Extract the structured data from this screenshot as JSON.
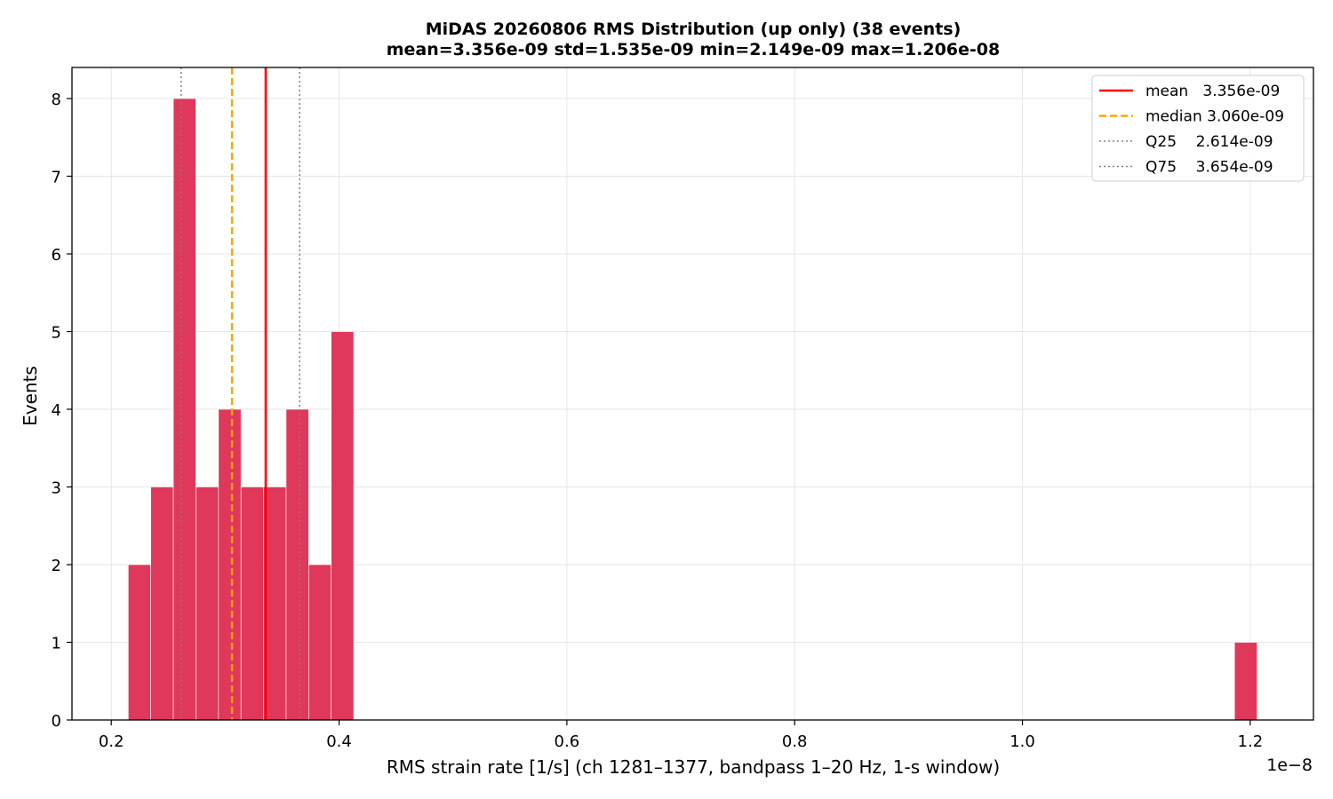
{
  "chart_data": {
    "type": "bar",
    "title": "MiDAS 20260806  RMS Distribution  (up only)  (38 events)",
    "subtitle": "mean=3.356e-09  std=1.535e-09  min=2.149e-09  max=1.206e-08",
    "xlabel": "RMS strain rate [1/s]  (ch 1281–1377, bandpass 1–20 Hz, 1-s window)",
    "ylabel": "Events",
    "x_offset_label": "1e−8",
    "xlim": [
      0.1655,
      1.2555
    ],
    "ylim": [
      0,
      8.4
    ],
    "x_ticks": [
      0.2,
      0.4,
      0.6,
      0.8,
      1.0,
      1.2
    ],
    "x_tick_labels": [
      "0.2",
      "0.4",
      "0.6",
      "0.8",
      "1.0",
      "1.2"
    ],
    "y_ticks": [
      0,
      1,
      2,
      3,
      4,
      5,
      6,
      7,
      8
    ],
    "y_tick_labels": [
      "0",
      "1",
      "2",
      "3",
      "4",
      "5",
      "6",
      "7",
      "8"
    ],
    "grid": true,
    "bar_color": "#e0385a",
    "bin_width": 0.0198,
    "bins": [
      {
        "x0": 0.2149,
        "count": 2
      },
      {
        "x0": 0.2347,
        "count": 3
      },
      {
        "x0": 0.2545,
        "count": 8
      },
      {
        "x0": 0.2743,
        "count": 3
      },
      {
        "x0": 0.2941,
        "count": 4
      },
      {
        "x0": 0.3139,
        "count": 3
      },
      {
        "x0": 0.3337,
        "count": 3
      },
      {
        "x0": 0.3535,
        "count": 4
      },
      {
        "x0": 0.3733,
        "count": 2
      },
      {
        "x0": 0.3931,
        "count": 5
      },
      {
        "x0": 1.1862,
        "count": 1
      }
    ],
    "reference_lines": [
      {
        "name": "mean",
        "legend_label": "mean   3.356e-09",
        "value": 0.3356,
        "color": "#ff0000",
        "style": "solid"
      },
      {
        "name": "median",
        "legend_label": "median 3.060e-09",
        "value": 0.306,
        "color": "#ffa500",
        "style": "dashed"
      },
      {
        "name": "Q25",
        "legend_label": "Q25    2.614e-09",
        "value": 0.2614,
        "color": "#808080",
        "style": "dotted"
      },
      {
        "name": "Q75",
        "legend_label": "Q75    3.654e-09",
        "value": 0.3654,
        "color": "#808080",
        "style": "dotted"
      }
    ],
    "legend_position": "top-right"
  }
}
